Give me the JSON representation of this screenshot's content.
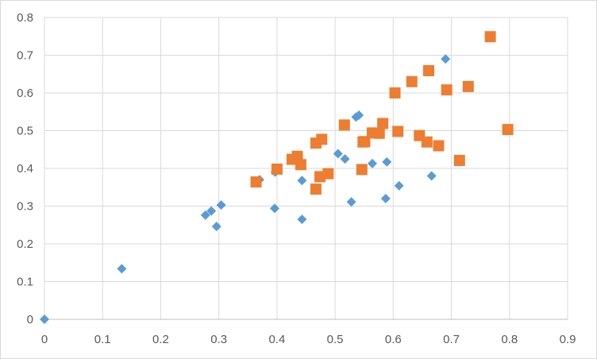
{
  "chart_data": {
    "type": "scatter",
    "title": "",
    "xlabel": "",
    "ylabel": "",
    "xlim": [
      0,
      0.9
    ],
    "ylim": [
      0,
      0.8
    ],
    "x_ticks": [
      "0",
      "0.1",
      "0.2",
      "0.3",
      "0.4",
      "0.5",
      "0.6",
      "0.7",
      "0.8",
      "0.9"
    ],
    "y_ticks": [
      "0",
      "0.1",
      "0.2",
      "0.3",
      "0.4",
      "0.5",
      "0.6",
      "0.7",
      "0.8"
    ],
    "grid": "vertical and horizontal gridlines",
    "legend": "none",
    "series": [
      {
        "marker": "diamond",
        "color": "#5b9bd5",
        "points": [
          [
            0.0,
            0.0
          ],
          [
            0.133,
            0.134
          ],
          [
            0.277,
            0.276
          ],
          [
            0.287,
            0.287
          ],
          [
            0.296,
            0.246
          ],
          [
            0.304,
            0.303
          ],
          [
            0.37,
            0.37
          ],
          [
            0.396,
            0.294
          ],
          [
            0.397,
            0.39
          ],
          [
            0.443,
            0.368
          ],
          [
            0.443,
            0.265
          ],
          [
            0.505,
            0.439
          ],
          [
            0.517,
            0.425
          ],
          [
            0.528,
            0.311
          ],
          [
            0.536,
            0.536
          ],
          [
            0.541,
            0.541
          ],
          [
            0.564,
            0.413
          ],
          [
            0.587,
            0.32
          ],
          [
            0.589,
            0.417
          ],
          [
            0.61,
            0.354
          ],
          [
            0.666,
            0.38
          ],
          [
            0.69,
            0.69
          ]
        ]
      },
      {
        "marker": "square",
        "color": "#ed7d31",
        "points": [
          [
            0.364,
            0.364
          ],
          [
            0.4,
            0.398
          ],
          [
            0.426,
            0.424
          ],
          [
            0.435,
            0.432
          ],
          [
            0.441,
            0.41
          ],
          [
            0.467,
            0.345
          ],
          [
            0.467,
            0.467
          ],
          [
            0.474,
            0.378
          ],
          [
            0.477,
            0.477
          ],
          [
            0.488,
            0.386
          ],
          [
            0.516,
            0.515
          ],
          [
            0.546,
            0.397
          ],
          [
            0.548,
            0.47
          ],
          [
            0.551,
            0.471
          ],
          [
            0.564,
            0.494
          ],
          [
            0.576,
            0.493
          ],
          [
            0.582,
            0.519
          ],
          [
            0.603,
            0.6
          ],
          [
            0.608,
            0.498
          ],
          [
            0.632,
            0.63
          ],
          [
            0.645,
            0.487
          ],
          [
            0.658,
            0.47
          ],
          [
            0.661,
            0.659
          ],
          [
            0.678,
            0.46
          ],
          [
            0.692,
            0.608
          ],
          [
            0.714,
            0.421
          ],
          [
            0.729,
            0.617
          ],
          [
            0.767,
            0.749
          ],
          [
            0.797,
            0.503
          ]
        ]
      }
    ]
  }
}
